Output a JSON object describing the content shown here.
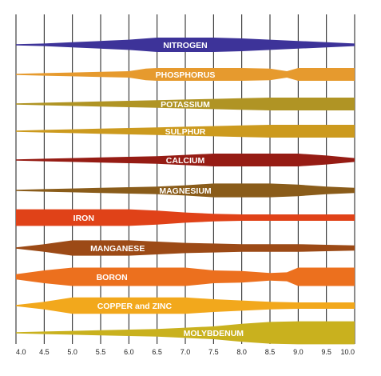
{
  "chart_data": {
    "type": "area",
    "xlim": [
      4.0,
      10.0
    ],
    "xlabel": "",
    "ylabel": "",
    "x_ticks": [
      "4.0",
      "4.5",
      "5.0",
      "5.5",
      "6.0",
      "6.5",
      "7.0",
      "7.5",
      "8.0",
      "8.5",
      "9.0",
      "9.5",
      "10.0"
    ],
    "grid": "vertical",
    "bands": [
      {
        "label": "NITROGEN",
        "color": "#3d3399",
        "profile": [
          [
            4.0,
            0.5
          ],
          [
            4.5,
            1
          ],
          [
            5.0,
            2
          ],
          [
            5.5,
            3
          ],
          [
            6.0,
            4
          ],
          [
            6.5,
            5.6
          ],
          [
            7.0,
            5.6
          ],
          [
            7.5,
            5.6
          ],
          [
            8.0,
            5
          ],
          [
            8.5,
            4
          ],
          [
            9.0,
            3
          ],
          [
            9.5,
            2
          ],
          [
            10.0,
            1
          ]
        ]
      },
      {
        "label": "PHOSPHORUS",
        "color": "#e69a2e",
        "profile": [
          [
            4.0,
            0.5
          ],
          [
            4.5,
            1
          ],
          [
            5.0,
            1.5
          ],
          [
            5.5,
            2
          ],
          [
            6.0,
            2.5
          ],
          [
            6.3,
            4.5
          ],
          [
            6.5,
            5
          ],
          [
            7.0,
            5
          ],
          [
            7.5,
            5
          ],
          [
            8.0,
            5
          ],
          [
            8.5,
            4.5
          ],
          [
            8.8,
            2.5
          ],
          [
            9.0,
            5
          ],
          [
            9.5,
            5
          ],
          [
            10.0,
            5
          ]
        ]
      },
      {
        "label": "POTASSIUM",
        "color": "#b09424",
        "profile": [
          [
            4.0,
            0.5
          ],
          [
            4.5,
            1
          ],
          [
            5.0,
            1.5
          ],
          [
            5.5,
            2
          ],
          [
            6.0,
            2.5
          ],
          [
            6.5,
            3
          ],
          [
            7.0,
            3.5
          ],
          [
            7.5,
            4
          ],
          [
            8.0,
            4.5
          ],
          [
            8.5,
            5
          ],
          [
            9.0,
            5
          ],
          [
            9.5,
            5
          ],
          [
            10.0,
            5
          ]
        ]
      },
      {
        "label": "SULPHUR",
        "color": "#cc9a1e",
        "profile": [
          [
            4.0,
            0.5
          ],
          [
            4.5,
            1
          ],
          [
            5.0,
            1.5
          ],
          [
            5.5,
            2
          ],
          [
            6.0,
            2.5
          ],
          [
            6.5,
            3
          ],
          [
            7.0,
            3.5
          ],
          [
            7.5,
            4
          ],
          [
            8.0,
            4.5
          ],
          [
            8.5,
            5
          ],
          [
            9.0,
            5
          ],
          [
            9.5,
            5
          ],
          [
            10.0,
            5
          ]
        ]
      },
      {
        "label": "CALCIUM",
        "color": "#961c14",
        "profile": [
          [
            4.0,
            0.5
          ],
          [
            4.5,
            1
          ],
          [
            5.0,
            1.5
          ],
          [
            5.5,
            2
          ],
          [
            6.0,
            2.5
          ],
          [
            6.5,
            3
          ],
          [
            7.0,
            4
          ],
          [
            7.5,
            5
          ],
          [
            8.0,
            5
          ],
          [
            8.5,
            5
          ],
          [
            9.0,
            5
          ],
          [
            9.5,
            3.5
          ],
          [
            10.0,
            1.5
          ]
        ]
      },
      {
        "label": "MAGNESIUM",
        "color": "#8a5c1a",
        "profile": [
          [
            4.0,
            0.5
          ],
          [
            4.5,
            1
          ],
          [
            5.0,
            1.5
          ],
          [
            5.5,
            2
          ],
          [
            6.0,
            2.5
          ],
          [
            6.5,
            3
          ],
          [
            7.0,
            4
          ],
          [
            7.5,
            5.4
          ],
          [
            8.0,
            5.4
          ],
          [
            8.5,
            5.4
          ],
          [
            9.0,
            4.5
          ],
          [
            9.5,
            3
          ],
          [
            10.0,
            2
          ]
        ]
      },
      {
        "label": "IRON",
        "color": "#e04218",
        "profile": [
          [
            4.0,
            6.5
          ],
          [
            4.5,
            6.5
          ],
          [
            5.0,
            6.5
          ],
          [
            5.5,
            6.5
          ],
          [
            6.0,
            6.5
          ],
          [
            6.5,
            5.5
          ],
          [
            7.0,
            4
          ],
          [
            7.5,
            3
          ],
          [
            8.0,
            2.5
          ],
          [
            8.5,
            2.5
          ],
          [
            9.0,
            2.5
          ],
          [
            9.5,
            2.5
          ],
          [
            10.0,
            2.5
          ]
        ]
      },
      {
        "label": "MANGANESE",
        "color": "#9c4a16",
        "profile": [
          [
            4.0,
            0.5
          ],
          [
            4.5,
            3
          ],
          [
            5.0,
            6
          ],
          [
            5.5,
            6
          ],
          [
            6.0,
            6
          ],
          [
            6.5,
            5
          ],
          [
            7.0,
            4
          ],
          [
            7.5,
            3.5
          ],
          [
            8.0,
            3
          ],
          [
            8.5,
            3
          ],
          [
            9.0,
            3
          ],
          [
            9.5,
            2.5
          ],
          [
            10.0,
            2
          ]
        ]
      },
      {
        "label": "BORON",
        "color": "#ec701e",
        "profile": [
          [
            4.0,
            2
          ],
          [
            4.5,
            5
          ],
          [
            5.0,
            7.2
          ],
          [
            5.5,
            7.2
          ],
          [
            6.0,
            7.2
          ],
          [
            6.5,
            7.2
          ],
          [
            7.0,
            7.2
          ],
          [
            7.5,
            5
          ],
          [
            8.0,
            4.5
          ],
          [
            8.5,
            3
          ],
          [
            8.8,
            3.5
          ],
          [
            9.0,
            7.2
          ],
          [
            9.5,
            7.2
          ],
          [
            10.0,
            7.2
          ]
        ]
      },
      {
        "label": "COPPER and ZINC",
        "color": "#f2a81c",
        "profile": [
          [
            4.0,
            0.5
          ],
          [
            4.5,
            3
          ],
          [
            5.0,
            6.4
          ],
          [
            5.5,
            6.4
          ],
          [
            6.0,
            6.4
          ],
          [
            6.5,
            6.4
          ],
          [
            7.0,
            6.4
          ],
          [
            7.5,
            5
          ],
          [
            8.0,
            4
          ],
          [
            8.5,
            3
          ],
          [
            9.0,
            2.5
          ],
          [
            9.5,
            2.5
          ],
          [
            10.0,
            2.5
          ]
        ]
      },
      {
        "label": "MOLYBDENUM",
        "color": "#c9b11e",
        "profile": [
          [
            4.0,
            0.5
          ],
          [
            4.5,
            1
          ],
          [
            5.0,
            1.5
          ],
          [
            5.5,
            2
          ],
          [
            6.0,
            2.5
          ],
          [
            6.5,
            3
          ],
          [
            7.0,
            4
          ],
          [
            7.5,
            5
          ],
          [
            8.0,
            7
          ],
          [
            8.5,
            8.5
          ],
          [
            9.0,
            9
          ],
          [
            9.5,
            9
          ],
          [
            10.0,
            9
          ]
        ]
      }
    ]
  }
}
